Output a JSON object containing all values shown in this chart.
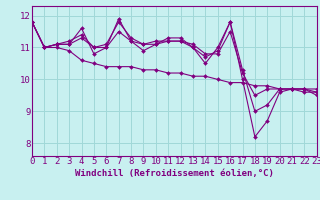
{
  "xlabel": "Windchill (Refroidissement éolien,°C)",
  "bg_color": "#c8f0f0",
  "line_color": "#800080",
  "grid_color": "#a0d8d8",
  "x_ticks": [
    0,
    1,
    2,
    3,
    4,
    5,
    6,
    7,
    8,
    9,
    10,
    11,
    12,
    13,
    14,
    15,
    16,
    17,
    18,
    19,
    20,
    21,
    22,
    23
  ],
  "y_ticks": [
    8,
    9,
    10,
    11,
    12
  ],
  "xlim": [
    0,
    23
  ],
  "ylim": [
    7.6,
    12.3
  ],
  "series": [
    [
      11.8,
      11.0,
      11.1,
      11.1,
      11.6,
      10.8,
      11.0,
      11.9,
      11.2,
      10.9,
      11.1,
      11.2,
      11.2,
      11.0,
      10.5,
      11.0,
      11.8,
      10.0,
      8.2,
      8.7,
      9.6,
      9.7,
      9.7,
      9.5
    ],
    [
      11.8,
      11.0,
      11.1,
      11.1,
      11.3,
      11.0,
      11.0,
      11.5,
      11.2,
      11.1,
      11.2,
      11.2,
      11.2,
      11.1,
      10.8,
      10.8,
      11.5,
      10.2,
      9.5,
      9.7,
      9.7,
      9.7,
      9.7,
      9.7
    ],
    [
      11.8,
      11.0,
      11.1,
      11.2,
      11.4,
      11.0,
      11.1,
      11.8,
      11.3,
      11.1,
      11.1,
      11.3,
      11.3,
      11.0,
      10.7,
      10.9,
      11.8,
      10.3,
      9.0,
      9.2,
      9.7,
      9.7,
      9.7,
      9.6
    ],
    [
      11.8,
      11.0,
      11.0,
      10.9,
      10.6,
      10.5,
      10.4,
      10.4,
      10.4,
      10.3,
      10.3,
      10.2,
      10.2,
      10.1,
      10.1,
      10.0,
      9.9,
      9.9,
      9.8,
      9.8,
      9.7,
      9.7,
      9.6,
      9.6
    ]
  ],
  "tick_fontsize": 6.5,
  "xlabel_fontsize": 6.5
}
